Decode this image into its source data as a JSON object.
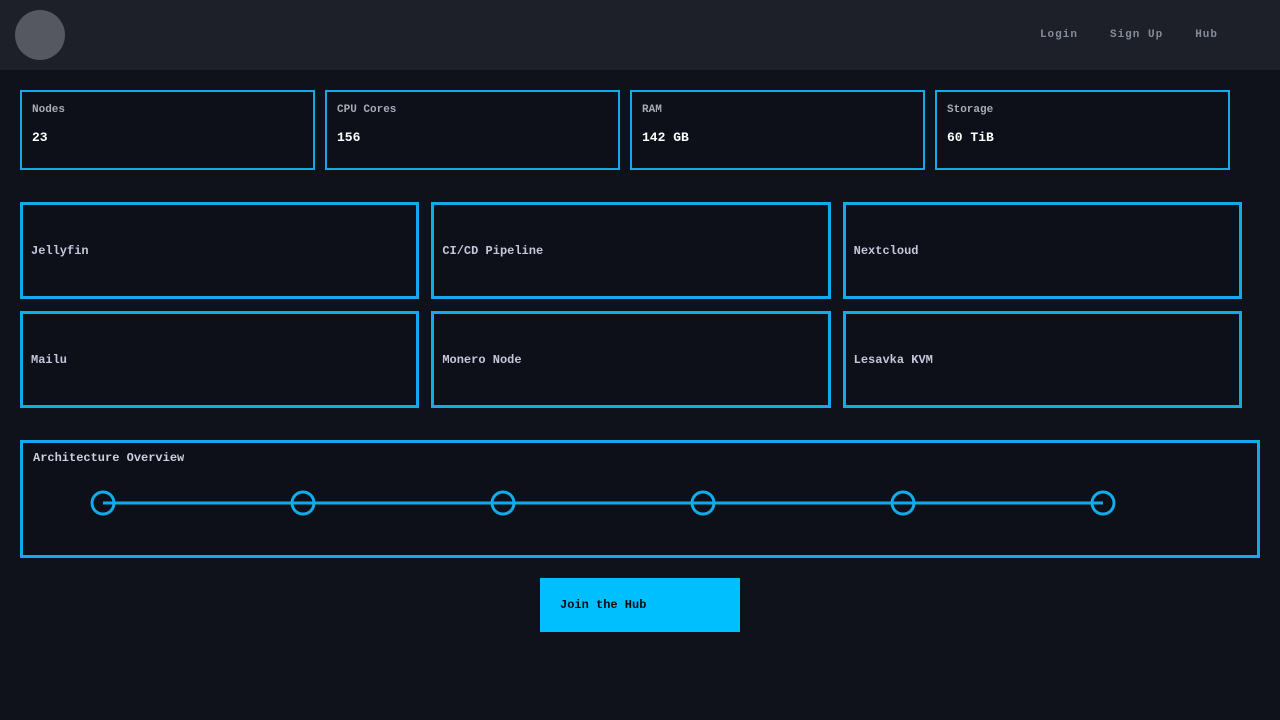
{
  "navbar": {
    "links": [
      {
        "label": "Login"
      },
      {
        "label": "Sign Up"
      },
      {
        "label": "Hub"
      }
    ]
  },
  "stats": [
    {
      "label": "Nodes",
      "value": "23"
    },
    {
      "label": "CPU Cores",
      "value": "156"
    },
    {
      "label": "RAM",
      "value": "142 GB"
    },
    {
      "label": "Storage",
      "value": "60 TiB"
    }
  ],
  "services": [
    {
      "label": "Jellyfin"
    },
    {
      "label": "CI/CD Pipeline"
    },
    {
      "label": "Nextcloud"
    },
    {
      "label": "Mailu"
    },
    {
      "label": "Monero Node"
    },
    {
      "label": "Lesavka KVM"
    }
  ],
  "architecture": {
    "title": "Architecture Overview",
    "node_count": 6
  },
  "cta": {
    "label": "Join the Hub"
  },
  "colors": {
    "accent": "#12abe9",
    "button": "#00bfff",
    "navbar_bg": "#1d2028",
    "page_bg": "#0f121b",
    "card_bg": "#0d1019"
  }
}
